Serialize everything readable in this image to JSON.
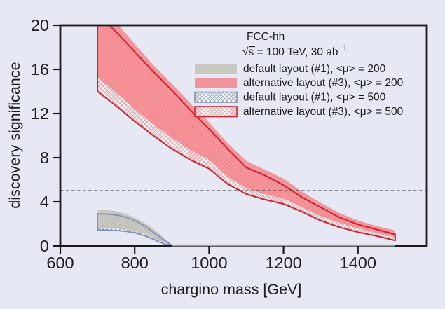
{
  "chart_data": {
    "type": "area",
    "title": "FCC-hh",
    "subtitle": {
      "sqrt": "√",
      "s": "s",
      "rest": " = 100 TeV, 30 ab",
      "sup": "−1"
    },
    "xlabel": "chargino mass [GeV]",
    "ylabel": "discovery significance",
    "xlim": [
      600,
      1585
    ],
    "ylim": [
      0,
      20
    ],
    "x_ticks": [
      "600",
      "800",
      "1000",
      "1200",
      "1400"
    ],
    "x_tick_values": [
      600,
      800,
      1000,
      1200,
      1400
    ],
    "y_ticks": [
      "0",
      "4",
      "8",
      "12",
      "16",
      "20"
    ],
    "y_tick_values": [
      0,
      4,
      8,
      12,
      16,
      20
    ],
    "threshold_significance": 5,
    "zero_tail": {
      "from": 900,
      "to": 1500
    },
    "legend_position": "upper right",
    "grid": false,
    "series": [
      {
        "label": "default layout (#1), <μ> = 200",
        "style": "solid",
        "fill": "rgba(194,193,184,0.85)",
        "x": [
          700,
          720,
          740,
          760,
          780,
          800,
          820,
          840,
          860,
          880,
          900
        ],
        "upper": [
          3.25,
          3.25,
          3.2,
          3.1,
          2.85,
          2.6,
          2.25,
          1.8,
          1.3,
          0.7,
          0.1
        ],
        "lower": [
          1.65,
          1.65,
          1.6,
          1.55,
          1.45,
          1.35,
          1.15,
          0.9,
          0.6,
          0.3,
          0.05
        ]
      },
      {
        "label": "alternative layout (#3), <μ> = 200",
        "style": "solid",
        "fill": "rgba(245,127,134,0.8)",
        "x": [
          700,
          750,
          800,
          850,
          900,
          950,
          1000,
          1050,
          1100,
          1150,
          1200,
          1250,
          1300,
          1350,
          1400,
          1450,
          1500
        ],
        "upper": [
          22.0,
          20.3,
          18.3,
          16.4,
          14.7,
          12.9,
          11.2,
          9.3,
          7.7,
          6.9,
          6.1,
          4.9,
          3.9,
          3.0,
          2.3,
          1.8,
          1.4
        ],
        "lower": [
          15.3,
          13.9,
          12.4,
          11.0,
          9.8,
          8.7,
          7.8,
          6.3,
          5.2,
          4.7,
          4.3,
          3.5,
          2.7,
          2.1,
          1.6,
          1.2,
          0.8
        ]
      },
      {
        "label": "default layout (#1), <μ> = 500",
        "style": "hatched",
        "hatch_pattern": "hatch-blue",
        "edge": "#8090b4",
        "x": [
          700,
          720,
          740,
          760,
          780,
          800,
          820,
          840,
          860,
          880,
          900
        ],
        "upper": [
          2.9,
          2.9,
          2.85,
          2.75,
          2.55,
          2.3,
          1.95,
          1.5,
          1.0,
          0.5,
          0.05
        ],
        "lower": [
          1.45,
          1.45,
          1.42,
          1.38,
          1.3,
          1.2,
          1.0,
          0.75,
          0.45,
          0.18,
          0.0
        ]
      },
      {
        "label": "alternative layout (#3), <μ> = 500",
        "style": "hatched",
        "hatch_pattern": "hatch-red",
        "edge": "#d0212f",
        "x": [
          700,
          750,
          800,
          850,
          900,
          950,
          1000,
          1050,
          1100,
          1150,
          1200,
          1250,
          1300,
          1350,
          1400,
          1450,
          1500
        ],
        "upper": [
          21.0,
          19.4,
          17.6,
          15.8,
          14.1,
          12.3,
          10.6,
          8.8,
          7.1,
          6.4,
          5.5,
          4.4,
          3.5,
          2.6,
          1.95,
          1.5,
          1.05
        ],
        "lower": [
          14.0,
          12.7,
          11.3,
          10.0,
          8.8,
          7.8,
          7.0,
          5.6,
          4.7,
          4.2,
          3.8,
          3.1,
          2.3,
          1.7,
          1.25,
          0.9,
          0.5
        ]
      }
    ]
  },
  "colors": {
    "background": "#e6e9f4",
    "frame": "#1a1a1a",
    "gray_band": "#c9c9c4",
    "pink_band": "#f2949c",
    "red_edge_line": "#d0212f",
    "blue_edge_line": "#8090b4",
    "threshold_dash": "#2a2a2a",
    "zero_tail_line": "#a0a09e"
  }
}
